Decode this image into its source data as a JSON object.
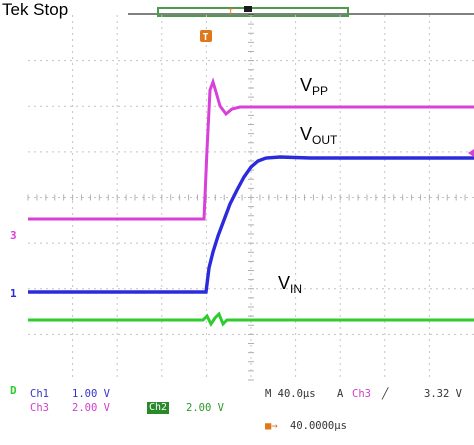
{
  "status": "Tek Stop",
  "colors": {
    "ch1": "#2b2bdc",
    "ch2": "#2ecc2e",
    "ch3": "#d93fd9",
    "trigger": "#e0781a",
    "grid": "#c9c9c9",
    "text_blue": "#3535c8",
    "text_magenta": "#cc40cc"
  },
  "labels": {
    "vpp_main": "V",
    "vpp_sub": "PP",
    "vout_main": "V",
    "vout_sub": "OUT",
    "vin_main": "V",
    "vin_sub": "IN"
  },
  "markers": {
    "trigger": "T",
    "ch1": "1",
    "ch2": "D",
    "ch3": "3"
  },
  "readouts": {
    "ch1_name": "Ch1",
    "ch1_scale": "1.00 V",
    "ch3_name": "Ch3",
    "ch3_scale": "2.00 V",
    "ch2_name": "Ch2",
    "ch2_scale": "2.00 V",
    "timebase": "M 40.0µs",
    "trigger_mode": "A",
    "trigger_source": "Ch3",
    "trigger_slope": "╱",
    "trigger_level": "3.32 V",
    "trigger_position": "40.0000µs"
  }
}
